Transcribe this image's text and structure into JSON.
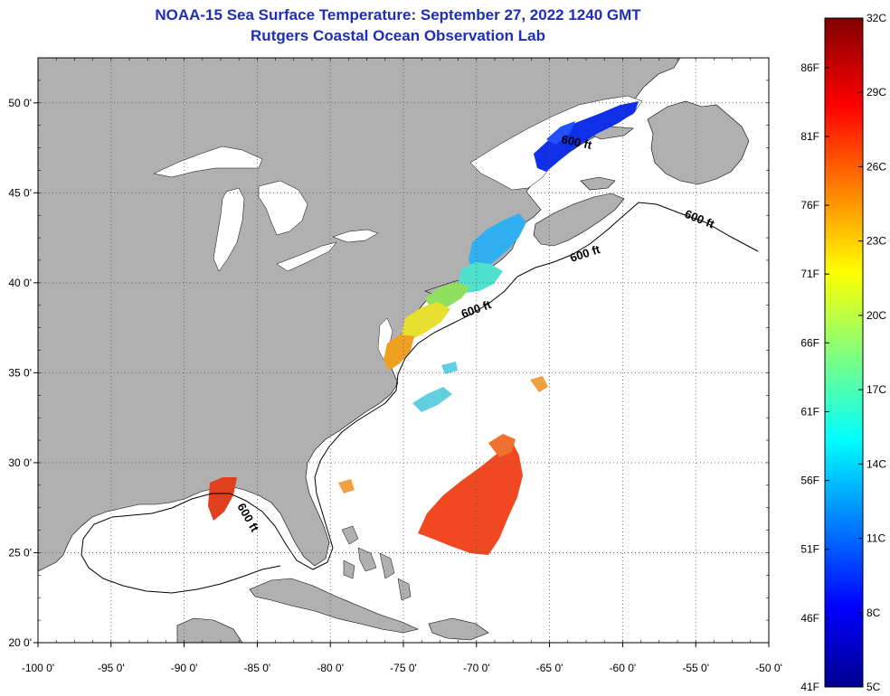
{
  "title": "NOAA-15 Sea Surface Temperature:  September 27, 2022 1240 GMT",
  "subtitle": "Rutgers Coastal Ocean Observation Lab",
  "map": {
    "projection": "equirectangular",
    "lon_range": [
      -100,
      -50
    ],
    "lat_range": [
      20,
      52.5
    ],
    "grid": true,
    "land_color": "#b0b0b0",
    "ocean_color": "#ffffff",
    "lon_ticks": [
      "-100 0'",
      "-95 0'",
      "-90 0'",
      "-85 0'",
      "-80 0'",
      "-75 0'",
      "-70 0'",
      "-65 0'",
      "-60 0'",
      "-55 0'",
      "-50 0'"
    ],
    "lon_values": [
      -100,
      -95,
      -90,
      -85,
      -80,
      -75,
      -70,
      -65,
      -60,
      -55,
      -50
    ],
    "lat_ticks": [
      "20 0'",
      "25 0'",
      "30 0'",
      "35 0'",
      "40 0'",
      "45 0'",
      "50 0'"
    ],
    "lat_values": [
      20,
      25,
      30,
      35,
      40,
      45,
      50
    ],
    "contour_labels": [
      "600 ft",
      "600 ft",
      "600 ft",
      "600 ft",
      "600 ft"
    ]
  },
  "colorbar": {
    "min_c": 5,
    "max_c": 32,
    "colors": [
      "#00008f",
      "#0000ff",
      "#00ffff",
      "#ffff00",
      "#ff0000",
      "#800000"
    ],
    "celsius_labels": [
      "32C",
      "29C",
      "26C",
      "23C",
      "20C",
      "17C",
      "14C",
      "11C",
      "8C",
      "5C"
    ],
    "celsius_values": [
      32,
      29,
      26,
      23,
      20,
      17,
      14,
      11,
      8,
      5
    ],
    "fahrenheit_labels": [
      "86F",
      "81F",
      "76F",
      "71F",
      "66F",
      "61F",
      "56F",
      "51F",
      "46F",
      "41F"
    ],
    "fahrenheit_values": [
      86,
      81,
      76,
      71,
      66,
      61,
      56,
      51,
      46,
      41
    ]
  }
}
